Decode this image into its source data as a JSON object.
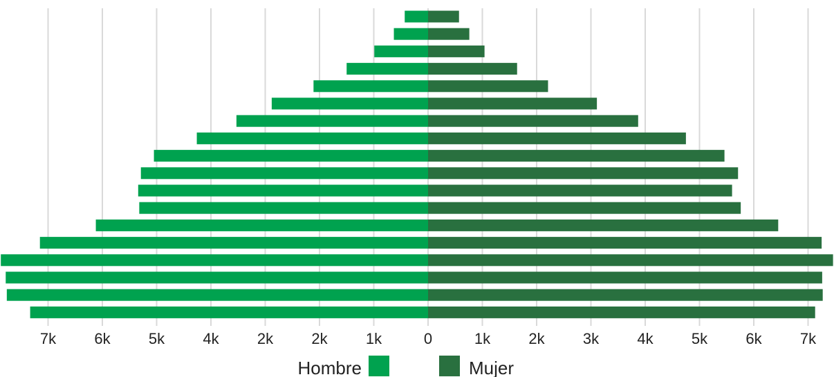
{
  "chart_data": {
    "type": "bar",
    "orientation": "horizontal",
    "layout": "population-pyramid",
    "colors": {
      "hombre": "#00a24f",
      "mujer": "#29703f",
      "grid": "#d9d9d9"
    },
    "series": [
      {
        "name": "Hombre",
        "values": [
          7330,
          7760,
          7780,
          7870,
          7150,
          6120,
          5320,
          5340,
          5290,
          5050,
          4260,
          3530,
          2880,
          2110,
          1500,
          990,
          630,
          430
        ]
      },
      {
        "name": "Mujer",
        "values": [
          7130,
          7270,
          7260,
          7460,
          7250,
          6450,
          5760,
          5600,
          5710,
          5460,
          4750,
          3870,
          3110,
          2210,
          1640,
          1040,
          760,
          570
        ]
      }
    ],
    "x_ticks_left": [
      "7k",
      "6k",
      "5k",
      "4k",
      "2k",
      "2k",
      "1k"
    ],
    "x_ticks_right": [
      "0",
      "1k",
      "2k",
      "3k",
      "4k",
      "5k",
      "6k",
      "7k"
    ],
    "xlim": [
      -7800,
      7500
    ],
    "grid": true,
    "legend_placement": "bottom-center"
  }
}
